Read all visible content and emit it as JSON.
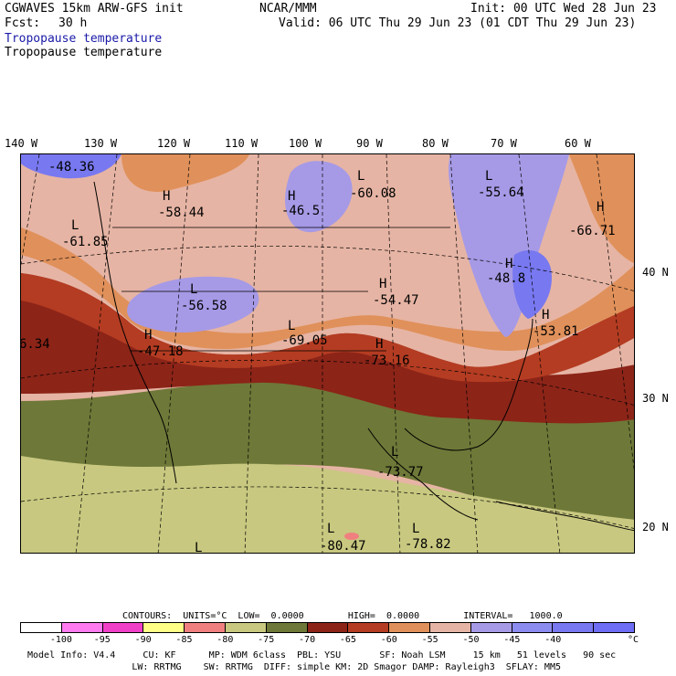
{
  "header": {
    "model_line": "CGWAVES 15km ARW-GFS init",
    "fcst_label": "Fcst:",
    "fcst_value": "30 h",
    "org": "NCAR/MMM",
    "init": "Init: 00 UTC Wed 28 Jun 23",
    "valid": "Valid: 06 UTC Thu 29 Jun 23 (01 CDT Thu 29 Jun 23)",
    "field_title_1": "Tropopause temperature",
    "field_title_2": "Tropopause temperature"
  },
  "map": {
    "lon_labels": [
      "140 W",
      "130 W",
      "120 W",
      "110 W",
      "100 W",
      "90 W",
      "80 W",
      "70 W",
      "60 W"
    ],
    "lat_labels": [
      "40 N",
      "30 N",
      "20 N"
    ],
    "extrema": [
      {
        "type": "L",
        "value": "-48.36"
      },
      {
        "type": "H",
        "value": "-58.44"
      },
      {
        "type": "L",
        "value": "-61.85"
      },
      {
        "type": "H",
        "value": "-46.5"
      },
      {
        "type": "L",
        "value": "-60.08"
      },
      {
        "type": "L",
        "value": "-55.64"
      },
      {
        "type": "H",
        "value": "-66.71"
      },
      {
        "type": "L",
        "value": "-56.58"
      },
      {
        "type": "H",
        "value": "-54.47"
      },
      {
        "type": "H",
        "value": "-48.8"
      },
      {
        "type": "H",
        "value": "-53.81"
      },
      {
        "type": "H",
        "value": "-47.18"
      },
      {
        "type": "L",
        "value": "-69.05"
      },
      {
        "type": "H",
        "value": "-73.16"
      },
      {
        "type": "L",
        "value": "-73.77"
      },
      {
        "type": "L",
        "value": "-80.47"
      },
      {
        "type": "L",
        "value": "-78.82"
      },
      {
        "type": "L",
        "value": ""
      },
      {
        "type": "",
        "value": "6.34"
      }
    ]
  },
  "contours": {
    "text": "CONTOURS:  UNITS=°C  LOW=  0.0000        HIGH=  0.0000        INTERVAL=   1000.0"
  },
  "colorbar": {
    "colors": [
      "#ffffff",
      "#ff7bf0",
      "#f040c8",
      "#ffff88",
      "#f08080",
      "#c8c880",
      "#6e7838",
      "#8c2418",
      "#b43c22",
      "#e0905a",
      "#e6b4a4",
      "#a69ae6",
      "#8c8cf0",
      "#7878f0",
      "#6e6ef5"
    ],
    "ticks": [
      "-100",
      "-95",
      "-90",
      "-85",
      "-80",
      "-75",
      "-70",
      "-65",
      "-60",
      "-55",
      "-50",
      "-45",
      "-40"
    ],
    "unit": "°C"
  },
  "footer": {
    "line1": "Model Info: V4.4     CU: KF      MP: WDM 6class  PBL: YSU       SF: Noah LSM     15 km   51 levels   90 sec",
    "line2": "                   LW: RRTMG    SW: RRTMG  DIFF: simple KM: 2D Smagor DAMP: Rayleigh3  SFLAY: MM5"
  }
}
